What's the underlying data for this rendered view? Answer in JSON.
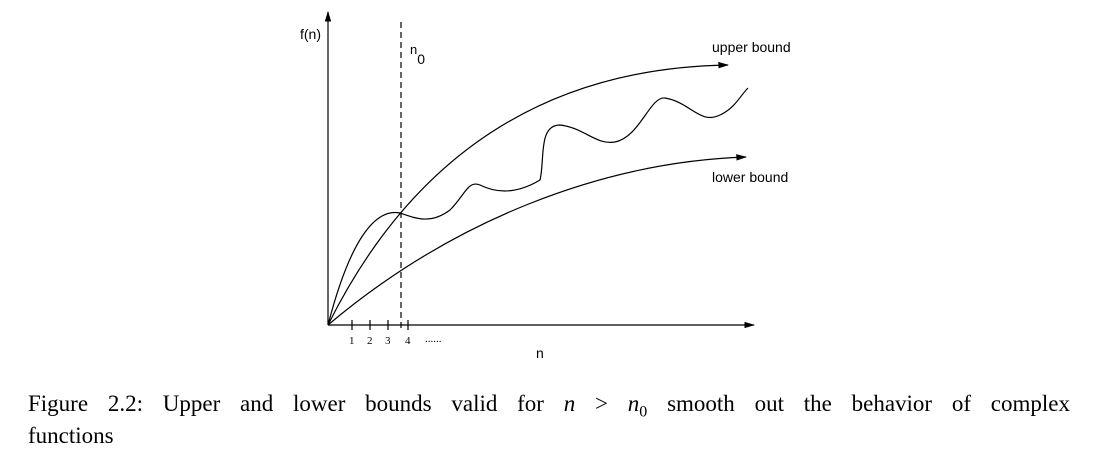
{
  "figure": {
    "y_axis_label": "f(n)",
    "x_axis_label": "n",
    "threshold_label": {
      "base": "n",
      "sub": "0"
    },
    "upper_label": "upper bound",
    "lower_label": "lower bound",
    "x_tick_labels": [
      "1",
      "2",
      "3",
      "4",
      "......"
    ]
  },
  "caption": {
    "label": "Figure 2.2:",
    "text_before": "Upper and lower bounds valid for",
    "var": "n",
    "relation": ">",
    "threshold": "n",
    "threshold_sub": "0",
    "text_after": "smooth out the behavior of complex",
    "continuation": "functions"
  }
}
